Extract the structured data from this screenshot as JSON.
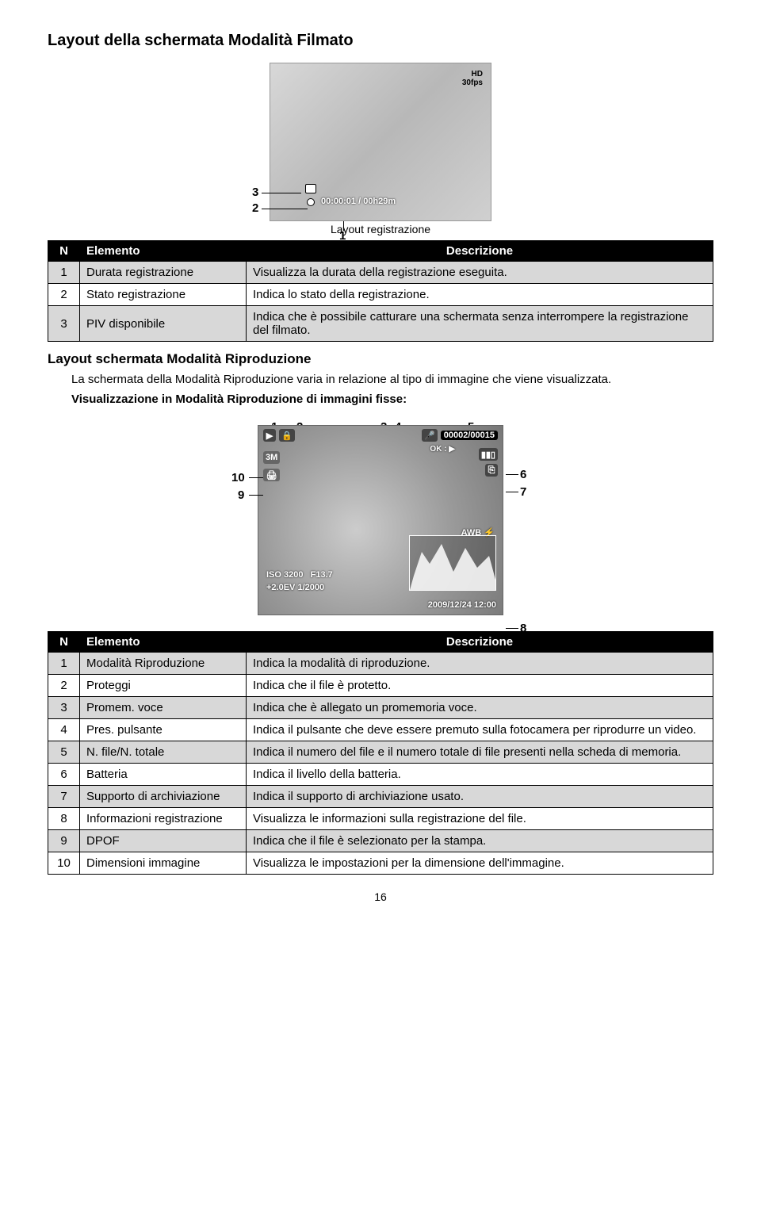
{
  "page": {
    "title1": "Layout della schermata Modalità Filmato",
    "caption1": "Layout registrazione",
    "title2": "Layout schermata Modalità Riproduzione",
    "body2a": "La schermata della Modalità Riproduzione varia in relazione al tipo di immagine che viene visualizzata.",
    "body2b": "Visualizzazione in Modalità Riproduzione di immagini fisse:",
    "page_number": "16"
  },
  "fig1": {
    "labels": {
      "l1": "1",
      "l2": "2",
      "l3": "3"
    },
    "hd": "HD",
    "fps": "30fps",
    "timer": "00:00:01 / 00h29m"
  },
  "table1": {
    "headers": {
      "n": "N",
      "el": "Elemento",
      "desc": "Descrizione"
    },
    "rows": [
      {
        "n": "1",
        "el": "Durata registrazione",
        "desc": "Visualizza la durata della registrazione eseguita."
      },
      {
        "n": "2",
        "el": "Stato registrazione",
        "desc": "Indica lo stato della registrazione."
      },
      {
        "n": "3",
        "el": "PIV disponibile",
        "desc": "Indica che è possibile catturare una schermata senza interrompere la registrazione del filmato."
      }
    ]
  },
  "fig2": {
    "labels": {
      "l1": "1",
      "l2": "2",
      "l3": "3",
      "l4": "4",
      "l5": "5",
      "l6": "6",
      "l7": "7",
      "l8": "8",
      "l9": "9",
      "l10": "10"
    },
    "lcd": {
      "play_icon": "▶",
      "lock_icon": "🔒",
      "mic_icon": "🎤",
      "counter": "00002/00015",
      "ok_hint": "OK : ▶",
      "battery": "▮▮▯",
      "card": "⎘",
      "size": "3M",
      "dpof": "🖨",
      "awb": "AWB",
      "flash": "⚡",
      "iso": "ISO 3200",
      "f": "F13.7",
      "ev": "+2.0EV 1/2000",
      "date": "2009/12/24 12:00"
    }
  },
  "table2": {
    "headers": {
      "n": "N",
      "el": "Elemento",
      "desc": "Descrizione"
    },
    "rows": [
      {
        "n": "1",
        "el": "Modalità Riproduzione",
        "desc": "Indica la modalità di riproduzione."
      },
      {
        "n": "2",
        "el": "Proteggi",
        "desc": "Indica che il file è protetto."
      },
      {
        "n": "3",
        "el": "Promem. voce",
        "desc": "Indica che è allegato un promemoria voce."
      },
      {
        "n": "4",
        "el": "Pres. pulsante",
        "desc": "Indica il pulsante che deve essere premuto sulla fotocamera per riprodurre un video."
      },
      {
        "n": "5",
        "el": "N. file/N. totale",
        "desc": "Indica il numero del file e il numero totale di file presenti nella scheda di memoria."
      },
      {
        "n": "6",
        "el": "Batteria",
        "desc": "Indica il livello della batteria."
      },
      {
        "n": "7",
        "el": "Supporto di archiviazione",
        "desc": "Indica il supporto di archiviazione usato."
      },
      {
        "n": "8",
        "el": "Informazioni registrazione",
        "desc": "Visualizza le informazioni sulla registrazione del file."
      },
      {
        "n": "9",
        "el": "DPOF",
        "desc": "Indica che il file è selezionato per la stampa."
      },
      {
        "n": "10",
        "el": "Dimensioni immagine",
        "desc": "Visualizza le impostazioni per la dimensione dell'immagine."
      }
    ]
  }
}
